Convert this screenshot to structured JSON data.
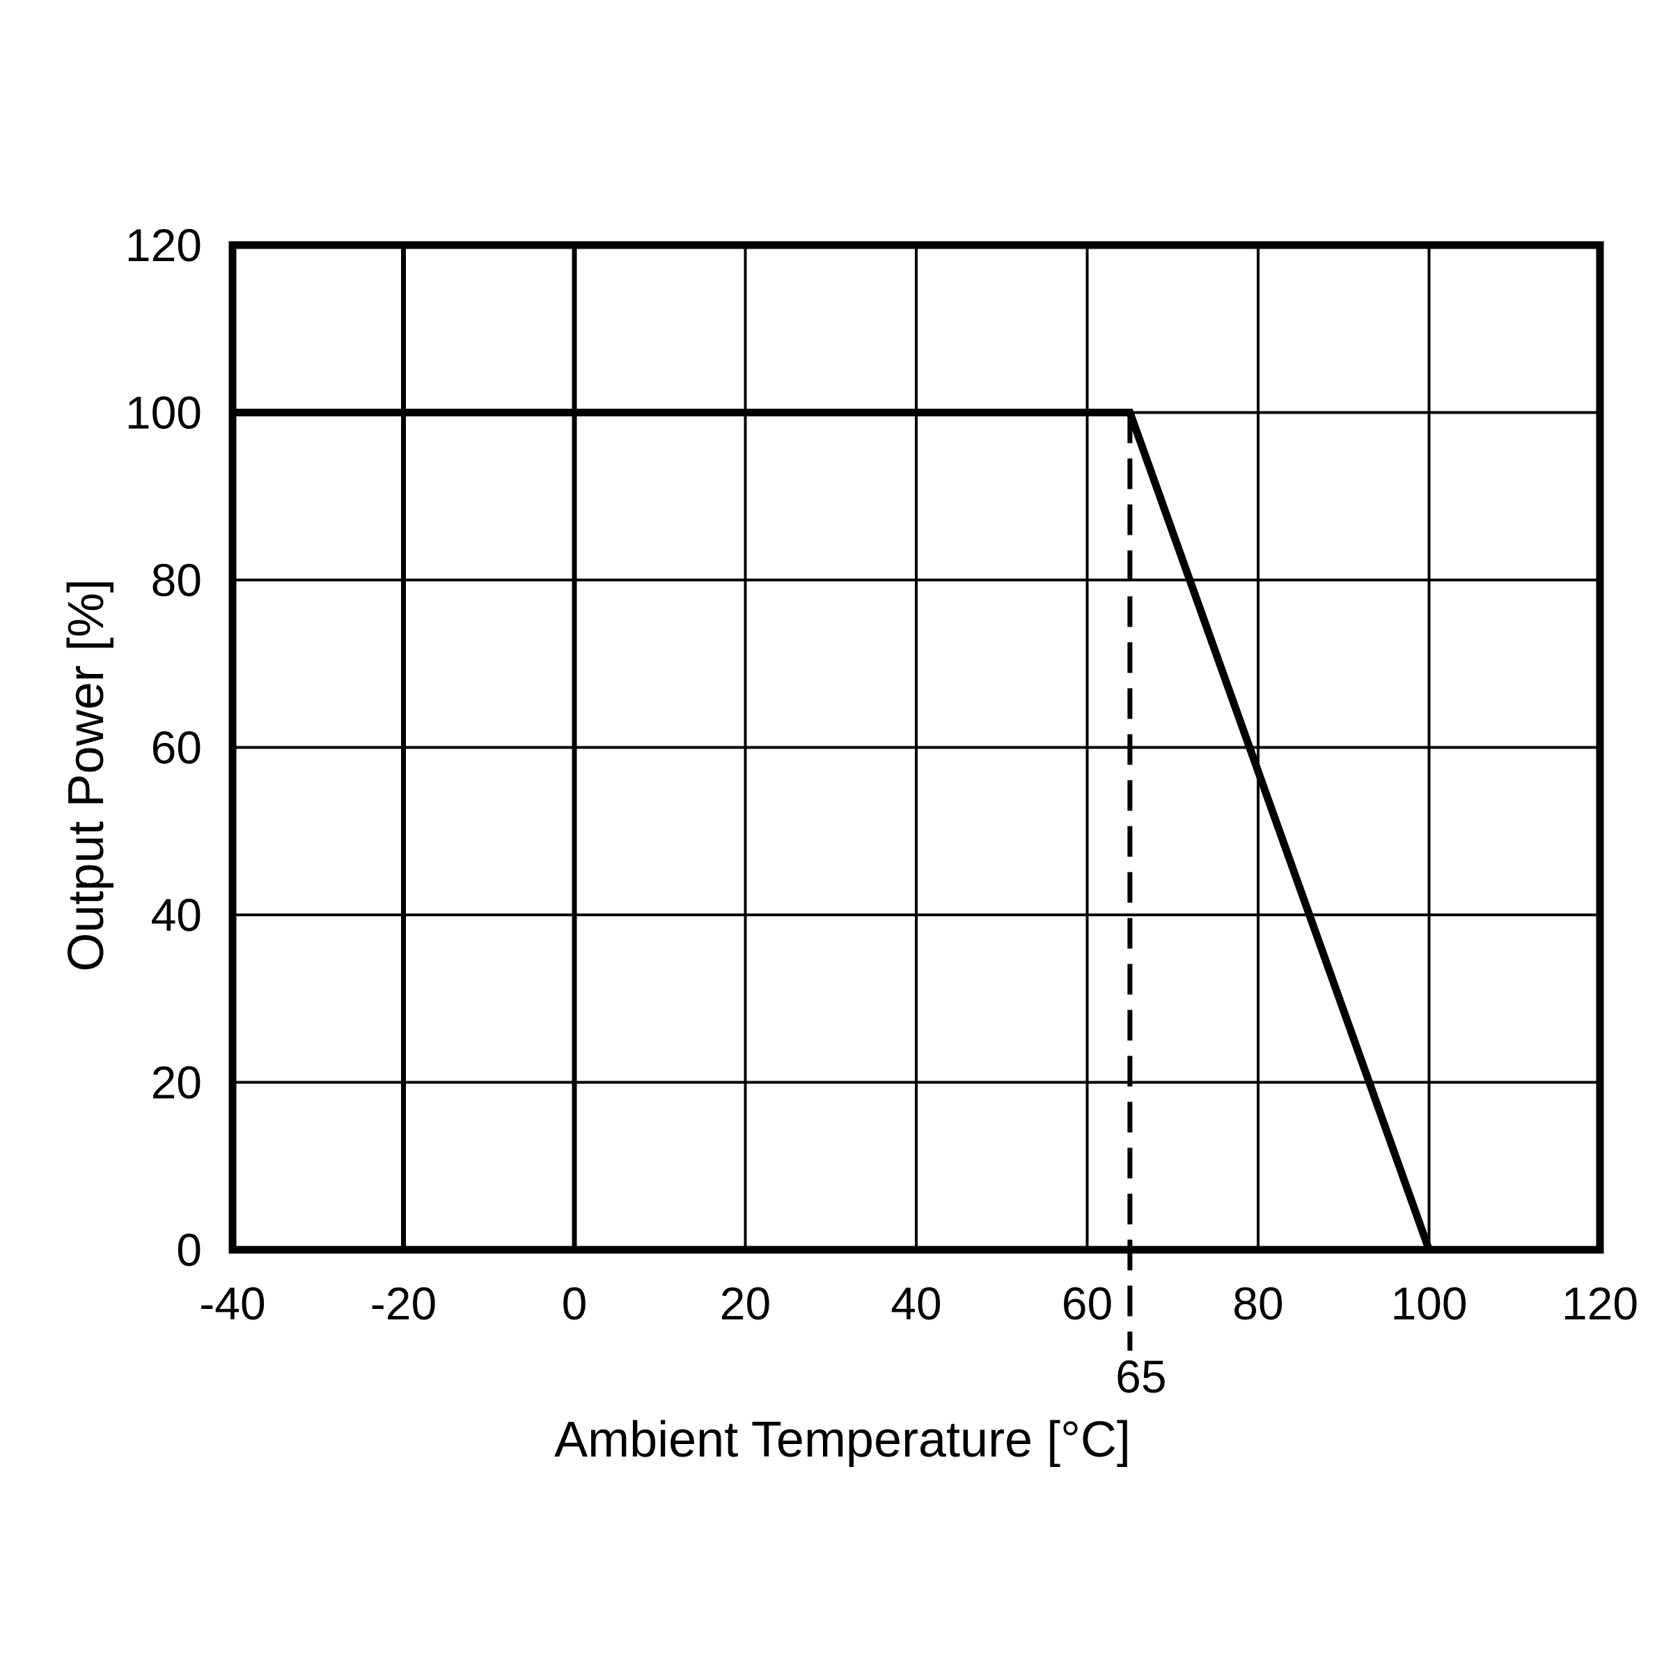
{
  "chart_data": {
    "type": "line",
    "xlabel": "Ambient Temperature [°C]",
    "ylabel": "Output Power [%]",
    "xlim": [
      -40,
      120
    ],
    "ylim": [
      0,
      120
    ],
    "x_ticks": [
      "-40",
      "-20",
      "0",
      "20",
      "40",
      "60",
      "80",
      "100",
      "120"
    ],
    "y_ticks": [
      "0",
      "20",
      "40",
      "60",
      "80",
      "100",
      "120"
    ],
    "grid": true,
    "series": [
      {
        "x": [
          -40,
          65,
          100
        ],
        "y": [
          100,
          100,
          0
        ]
      }
    ],
    "annotations": [
      {
        "type": "vline",
        "x": 65,
        "style": "dashed",
        "label": "65"
      }
    ]
  }
}
